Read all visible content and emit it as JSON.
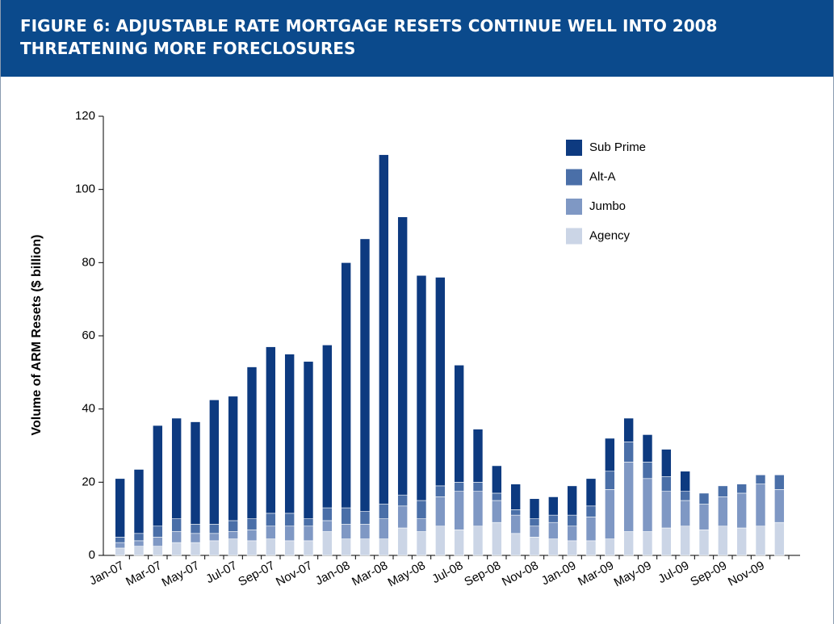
{
  "chart_data": {
    "type": "stacked-bar",
    "title": "FIGURE 6: ADJUSTABLE RATE MORTGAGE RESETS CONTINUE WELL INTO 2008 THREATENING MORE FORECLOSURES",
    "ylabel": "Volume of ARM Resets ($ billion)",
    "categories": [
      "Jan-07",
      null,
      "Mar-07",
      null,
      "May-07",
      null,
      "Jul-07",
      null,
      "Sep-07",
      null,
      "Nov-07",
      null,
      "Jan-08",
      null,
      "Mar-08",
      null,
      "May-08",
      null,
      "Jul-08",
      null,
      "Sep-08",
      null,
      "Nov-08",
      null,
      "Jan-09",
      null,
      "Mar-09",
      null,
      "May-09",
      null,
      "Jul-09",
      null,
      "Sep-09",
      null,
      "Nov-09",
      null
    ],
    "series": [
      {
        "name": "Sub Prime",
        "color": "#0d3a80",
        "values": [
          16,
          17.5,
          27.5,
          27.5,
          28,
          34,
          34,
          41.5,
          45.5,
          43.5,
          43,
          44.5,
          67,
          74.5,
          95.5,
          76,
          61.5,
          57,
          32,
          14.5,
          7.5,
          7,
          5.5,
          5,
          8,
          7.5,
          9,
          6.5,
          7.5,
          7.5,
          5.5,
          0,
          0,
          0,
          0,
          0
        ]
      },
      {
        "name": "Alt-A",
        "color": "#4a6fa8",
        "values": [
          1.5,
          2,
          3,
          3.5,
          2.5,
          2.5,
          3,
          3,
          3.5,
          3.5,
          2,
          3.5,
          4.5,
          3.5,
          4,
          3,
          5,
          3,
          2.5,
          2.5,
          2,
          1.5,
          2,
          2,
          3,
          3,
          5,
          5.5,
          4.5,
          4,
          2.5,
          3,
          3,
          2.5,
          2.5,
          4
        ]
      },
      {
        "name": "Jumbo",
        "color": "#7f98c4",
        "values": [
          1.5,
          1.5,
          2.5,
          3,
          2.5,
          2,
          2,
          3,
          3.5,
          4,
          4,
          3,
          4,
          4,
          5.5,
          6,
          3.5,
          8,
          10.5,
          9.5,
          6,
          5,
          3,
          4.5,
          4,
          6.5,
          13.5,
          19,
          14.5,
          10,
          7,
          7,
          8,
          9.5,
          11.5,
          9
        ]
      },
      {
        "name": "Agency",
        "color": "#cbd5e6",
        "values": [
          2,
          2.5,
          2.5,
          3.5,
          3.5,
          4,
          4.5,
          4,
          4.5,
          4,
          4,
          6.5,
          4.5,
          4.5,
          4.5,
          7.5,
          6.5,
          8,
          7,
          8,
          9,
          6,
          5,
          4.5,
          4,
          4,
          4.5,
          6.5,
          6.5,
          7.5,
          8,
          7,
          8,
          7.5,
          8,
          9
        ]
      }
    ],
    "ylim": [
      0,
      120
    ],
    "yticks": [
      0,
      20,
      40,
      60,
      80,
      100,
      120
    ],
    "grid": false,
    "legend": "upper-right"
  }
}
